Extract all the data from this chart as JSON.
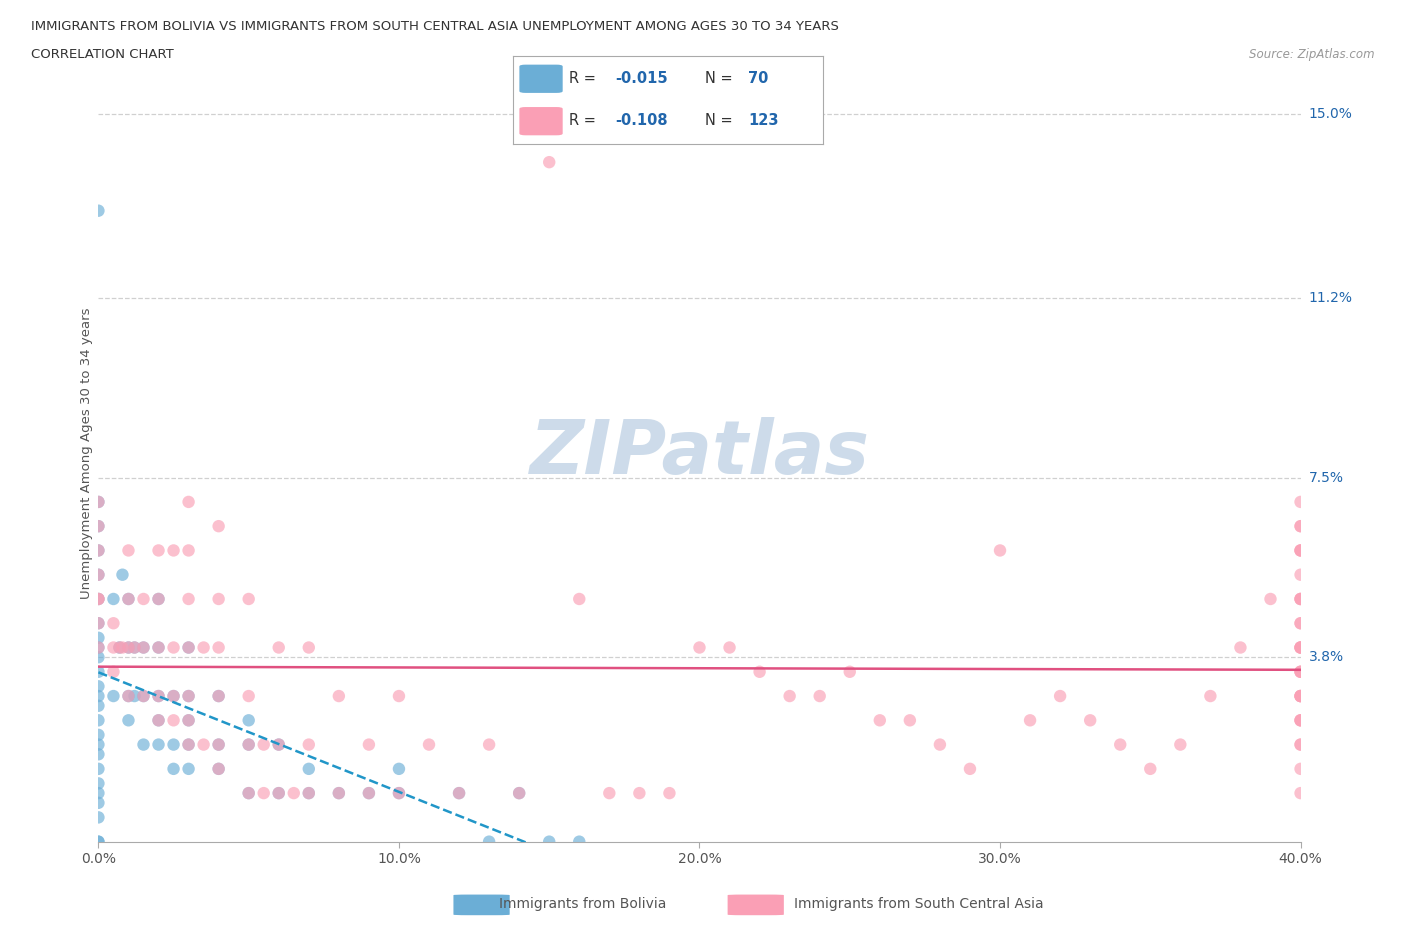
{
  "title_line1": "IMMIGRANTS FROM BOLIVIA VS IMMIGRANTS FROM SOUTH CENTRAL ASIA UNEMPLOYMENT AMONG AGES 30 TO 34 YEARS",
  "title_line2": "CORRELATION CHART",
  "source": "Source: ZipAtlas.com",
  "ylabel": "Unemployment Among Ages 30 to 34 years",
  "xlim": [
    0.0,
    0.4
  ],
  "ylim": [
    0.0,
    0.16
  ],
  "xticks": [
    0.0,
    0.1,
    0.2,
    0.3,
    0.4
  ],
  "xticklabels": [
    "0.0%",
    "10.0%",
    "20.0%",
    "30.0%",
    "40.0%"
  ],
  "ytick_positions": [
    0.038,
    0.075,
    0.112,
    0.15
  ],
  "ytick_labels": [
    "3.8%",
    "7.5%",
    "11.2%",
    "15.0%"
  ],
  "bolivia_color": "#6baed6",
  "asia_color": "#fa9fb5",
  "bolivia_line_color": "#2196c8",
  "asia_line_color": "#e05080",
  "legend_text_color": "#2166ac",
  "watermark_color": "#c8d8e8",
  "grid_color": "#d0d0d0",
  "background_color": "#ffffff",
  "bolivia_R": -0.015,
  "bolivia_N": 70,
  "asia_R": -0.108,
  "asia_N": 123,
  "bolivia_scatter_x": [
    0.0,
    0.0,
    0.0,
    0.0,
    0.0,
    0.0,
    0.0,
    0.0,
    0.0,
    0.0,
    0.0,
    0.0,
    0.0,
    0.0,
    0.0,
    0.0,
    0.0,
    0.0,
    0.0,
    0.0,
    0.0,
    0.0,
    0.0,
    0.0,
    0.0,
    0.005,
    0.005,
    0.007,
    0.008,
    0.01,
    0.01,
    0.01,
    0.01,
    0.012,
    0.012,
    0.015,
    0.015,
    0.015,
    0.02,
    0.02,
    0.02,
    0.02,
    0.02,
    0.025,
    0.025,
    0.025,
    0.03,
    0.03,
    0.03,
    0.03,
    0.03,
    0.04,
    0.04,
    0.04,
    0.05,
    0.05,
    0.05,
    0.06,
    0.06,
    0.07,
    0.07,
    0.08,
    0.09,
    0.1,
    0.1,
    0.12,
    0.13,
    0.14,
    0.15,
    0.16
  ],
  "bolivia_scatter_y": [
    0.0,
    0.0,
    0.005,
    0.008,
    0.01,
    0.012,
    0.015,
    0.018,
    0.02,
    0.022,
    0.025,
    0.028,
    0.03,
    0.032,
    0.035,
    0.038,
    0.04,
    0.042,
    0.045,
    0.05,
    0.055,
    0.06,
    0.065,
    0.07,
    0.13,
    0.03,
    0.05,
    0.04,
    0.055,
    0.025,
    0.03,
    0.04,
    0.05,
    0.03,
    0.04,
    0.02,
    0.03,
    0.04,
    0.02,
    0.025,
    0.03,
    0.04,
    0.05,
    0.015,
    0.02,
    0.03,
    0.015,
    0.02,
    0.025,
    0.03,
    0.04,
    0.015,
    0.02,
    0.03,
    0.01,
    0.02,
    0.025,
    0.01,
    0.02,
    0.01,
    0.015,
    0.01,
    0.01,
    0.01,
    0.015,
    0.01,
    0.0,
    0.01,
    0.0,
    0.0
  ],
  "asia_scatter_x": [
    0.0,
    0.0,
    0.0,
    0.0,
    0.0,
    0.0,
    0.0,
    0.0,
    0.005,
    0.005,
    0.005,
    0.007,
    0.008,
    0.01,
    0.01,
    0.01,
    0.01,
    0.012,
    0.015,
    0.015,
    0.015,
    0.02,
    0.02,
    0.02,
    0.02,
    0.02,
    0.025,
    0.025,
    0.025,
    0.025,
    0.03,
    0.03,
    0.03,
    0.03,
    0.03,
    0.03,
    0.03,
    0.035,
    0.035,
    0.04,
    0.04,
    0.04,
    0.04,
    0.04,
    0.04,
    0.05,
    0.05,
    0.05,
    0.05,
    0.055,
    0.055,
    0.06,
    0.06,
    0.06,
    0.065,
    0.07,
    0.07,
    0.07,
    0.08,
    0.08,
    0.09,
    0.09,
    0.1,
    0.1,
    0.11,
    0.12,
    0.13,
    0.14,
    0.15,
    0.16,
    0.17,
    0.18,
    0.19,
    0.2,
    0.21,
    0.22,
    0.23,
    0.24,
    0.25,
    0.26,
    0.27,
    0.28,
    0.29,
    0.3,
    0.31,
    0.32,
    0.33,
    0.34,
    0.35,
    0.36,
    0.37,
    0.38,
    0.39,
    0.4,
    0.4,
    0.4,
    0.4,
    0.4,
    0.4,
    0.4,
    0.4,
    0.4,
    0.4,
    0.4,
    0.4,
    0.4,
    0.4,
    0.4,
    0.4,
    0.4,
    0.4,
    0.4,
    0.4,
    0.4,
    0.4,
    0.4,
    0.4,
    0.4,
    0.4,
    0.4,
    0.4,
    0.4,
    0.4
  ],
  "asia_scatter_y": [
    0.04,
    0.045,
    0.05,
    0.055,
    0.06,
    0.065,
    0.07,
    0.05,
    0.035,
    0.04,
    0.045,
    0.04,
    0.04,
    0.03,
    0.04,
    0.05,
    0.06,
    0.04,
    0.03,
    0.04,
    0.05,
    0.025,
    0.03,
    0.04,
    0.05,
    0.06,
    0.025,
    0.03,
    0.04,
    0.06,
    0.02,
    0.025,
    0.03,
    0.04,
    0.05,
    0.06,
    0.07,
    0.02,
    0.04,
    0.015,
    0.02,
    0.03,
    0.04,
    0.05,
    0.065,
    0.01,
    0.02,
    0.03,
    0.05,
    0.01,
    0.02,
    0.01,
    0.02,
    0.04,
    0.01,
    0.01,
    0.02,
    0.04,
    0.01,
    0.03,
    0.01,
    0.02,
    0.01,
    0.03,
    0.02,
    0.01,
    0.02,
    0.01,
    0.14,
    0.05,
    0.01,
    0.01,
    0.01,
    0.04,
    0.04,
    0.035,
    0.03,
    0.03,
    0.035,
    0.025,
    0.025,
    0.02,
    0.015,
    0.06,
    0.025,
    0.03,
    0.025,
    0.02,
    0.015,
    0.02,
    0.03,
    0.04,
    0.05,
    0.01,
    0.015,
    0.02,
    0.025,
    0.03,
    0.035,
    0.04,
    0.045,
    0.05,
    0.055,
    0.06,
    0.03,
    0.035,
    0.04,
    0.045,
    0.05,
    0.06,
    0.065,
    0.02,
    0.025,
    0.03,
    0.035,
    0.04,
    0.05,
    0.06,
    0.065,
    0.025,
    0.03,
    0.04,
    0.07
  ]
}
